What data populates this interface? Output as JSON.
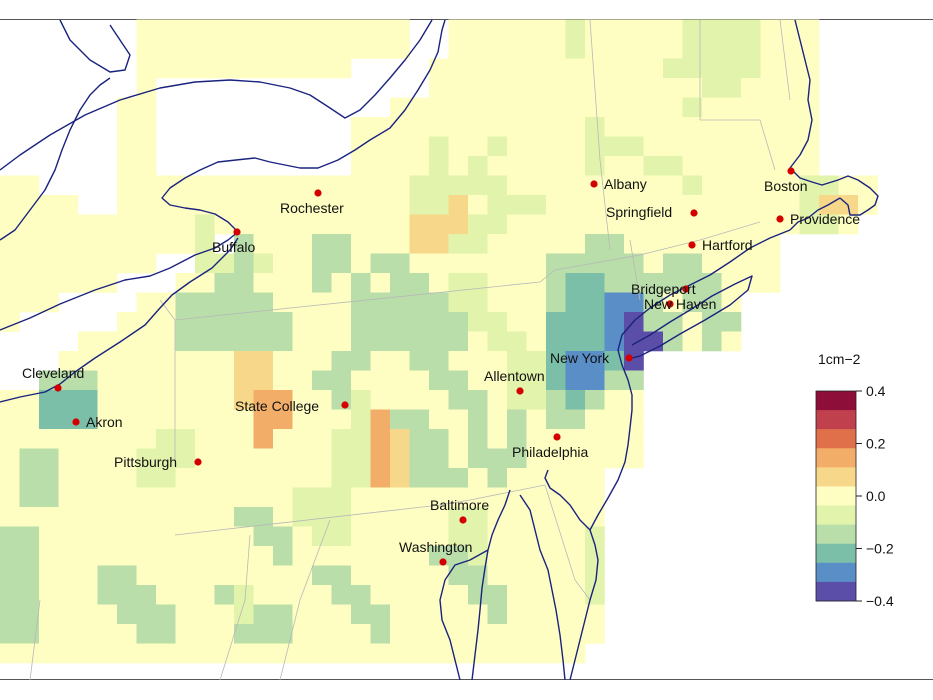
{
  "colors": {
    "background": "#ffffff",
    "coast": "#1a237e",
    "border": "#b8b8b8",
    "city": "#d40000",
    "base_cell": "#fefec3"
  },
  "cities": [
    {
      "name": "Rochester",
      "label": "Rochester"
    },
    {
      "name": "Buffalo",
      "label": "Buffalo"
    },
    {
      "name": "Albany",
      "label": "Albany"
    },
    {
      "name": "Springfield",
      "label": "Springfield"
    },
    {
      "name": "Boston",
      "label": "Boston"
    },
    {
      "name": "Providence",
      "label": "Providence"
    },
    {
      "name": "Hartford",
      "label": "Hartford"
    },
    {
      "name": "Bridgeport",
      "label": "Bridgeport"
    },
    {
      "name": "New Haven",
      "label": "New Haven"
    },
    {
      "name": "New York",
      "label": "New York"
    },
    {
      "name": "Cleveland",
      "label": "Cleveland"
    },
    {
      "name": "Akron",
      "label": "Akron"
    },
    {
      "name": "Allentown",
      "label": "Allentown"
    },
    {
      "name": "State College",
      "label": "State College"
    },
    {
      "name": "Philadelphia",
      "label": "Philadelphia"
    },
    {
      "name": "Pittsburgh",
      "label": "Pittsburgh"
    },
    {
      "name": "Baltimore",
      "label": "Baltimore"
    },
    {
      "name": "Washington",
      "label": "Washington"
    }
  ],
  "legend": {
    "title": "1cm−2",
    "ticks": [
      "0.4",
      "0.2",
      "0.0",
      "−0.2",
      "−0.4"
    ],
    "colors": [
      "#8e0e3a",
      "#c0404e",
      "#e0704a",
      "#f2ae68",
      "#f7d88a",
      "#fefec3",
      "#e2f3ac",
      "#b9deaa",
      "#7bbfa8",
      "#5a8ec6",
      "#5b4ea8"
    ]
  }
}
